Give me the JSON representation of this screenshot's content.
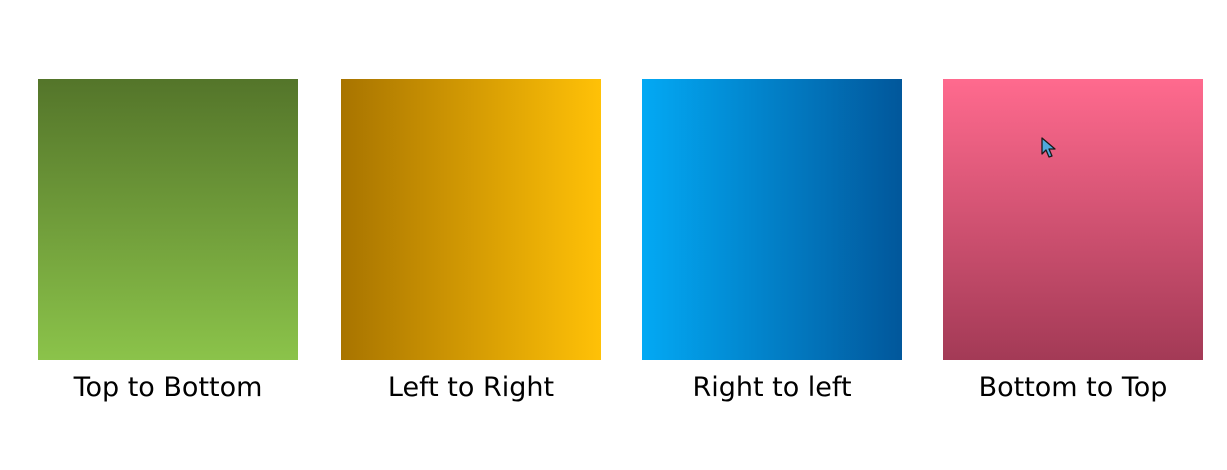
{
  "swatches": [
    {
      "id": "top-to-bottom",
      "label": "Top to Bottom",
      "direction": "to bottom",
      "start_color": "#54752A",
      "end_color": "#8BC34A"
    },
    {
      "id": "left-to-right",
      "label": "Left to Right",
      "direction": "to right",
      "start_color": "#A87400",
      "end_color": "#FFC107"
    },
    {
      "id": "right-to-left",
      "label": "Right to left",
      "direction": "to left",
      "start_color": "#01579B",
      "end_color": "#03A9F4"
    },
    {
      "id": "bottom-to-top",
      "label": "Bottom to Top",
      "direction": "to top",
      "start_color": "#A33A56",
      "end_color": "#FF6A8E"
    }
  ],
  "cursor": {
    "icon": "mouse-pointer-icon",
    "fill_color": "#4FA8DD"
  }
}
